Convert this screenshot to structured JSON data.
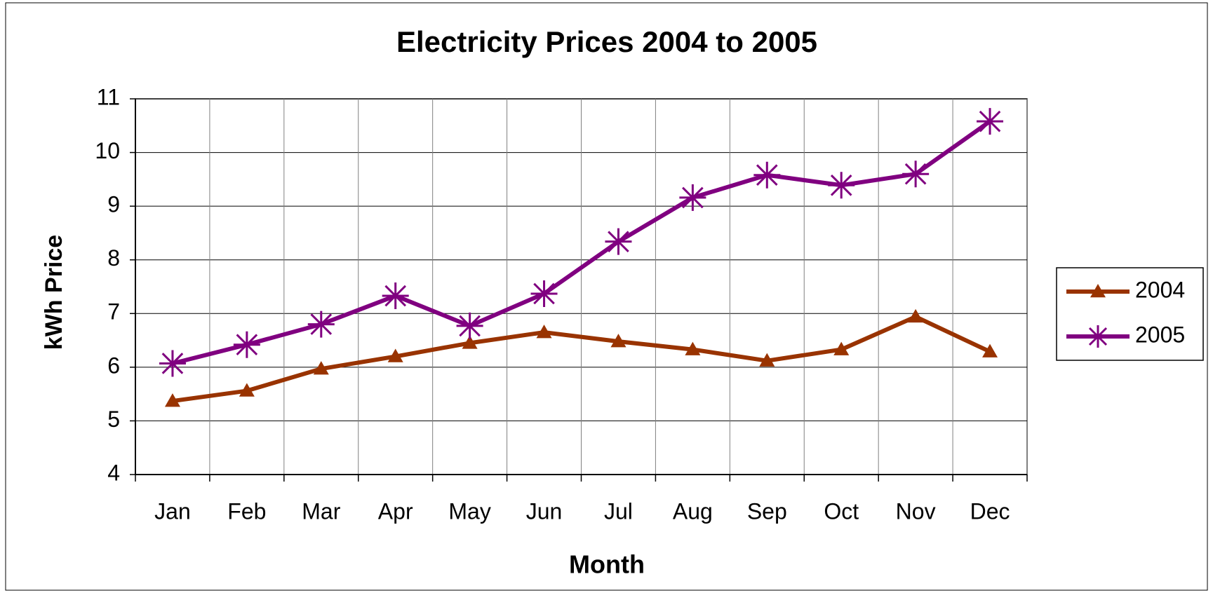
{
  "chart_data": {
    "type": "line",
    "title": "Electricity Prices 2004 to 2005",
    "x_label": "Month",
    "y_label": "kWh Price",
    "categories": [
      "Jan",
      "Feb",
      "Mar",
      "Apr",
      "May",
      "Jun",
      "Jul",
      "Aug",
      "Sep",
      "Oct",
      "Nov",
      "Dec"
    ],
    "series": [
      {
        "name": "2004",
        "color": "#993300",
        "marker": "triangle",
        "values": [
          5.37,
          5.56,
          5.97,
          6.2,
          6.45,
          6.65,
          6.48,
          6.33,
          6.12,
          6.33,
          6.94,
          6.29
        ]
      },
      {
        "name": "2005",
        "color": "#800080",
        "marker": "asterisk",
        "values": [
          6.07,
          6.42,
          6.8,
          7.33,
          6.77,
          7.37,
          8.34,
          9.16,
          9.58,
          9.39,
          9.6,
          10.58
        ]
      }
    ],
    "ylim": [
      4,
      11
    ],
    "yticks": [
      4,
      5,
      6,
      7,
      8,
      9,
      10,
      11
    ],
    "grid": true,
    "legend": "right"
  }
}
